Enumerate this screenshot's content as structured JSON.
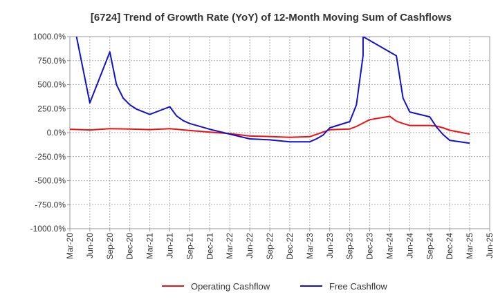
{
  "chart_data": {
    "type": "line",
    "title": "[6724]  Trend of Growth Rate (YoY) of 12-Month Moving Sum of Cashflows",
    "xlabel": "",
    "ylabel": "",
    "x_tick_labels": [
      "Mar-20",
      "Jun-20",
      "Sep-20",
      "Dec-20",
      "Mar-21",
      "Jun-21",
      "Sep-21",
      "Dec-21",
      "Mar-22",
      "Jun-22",
      "Sep-22",
      "Dec-22",
      "Mar-23",
      "Jun-23",
      "Sep-23",
      "Dec-23",
      "Mar-24",
      "Jun-24",
      "Sep-24",
      "Dec-24",
      "Mar-25",
      "Jun-25"
    ],
    "y_ticks": [
      1000,
      750,
      500,
      250,
      0,
      -250,
      -500,
      -750,
      -1000
    ],
    "y_tick_labels": [
      "1000.0%",
      "750.0%",
      "500.0%",
      "250.0%",
      "0.0%",
      "-250.0%",
      "-500.0%",
      "-750.0%",
      "-1000.0%"
    ],
    "ylim": [
      -1000,
      1000
    ],
    "grid": true,
    "legend_position": "bottom",
    "series": [
      {
        "name": "Operating Cashflow",
        "color": "#ee1111",
        "points": [
          [
            "Mar-20",
            35
          ],
          [
            "Jun-20",
            28
          ],
          [
            "Sep-20",
            42
          ],
          [
            "Dec-20",
            38
          ],
          [
            "Mar-21",
            32
          ],
          [
            "Jun-21",
            42
          ],
          [
            "Sep-21",
            22
          ],
          [
            "Dec-21",
            5
          ],
          [
            "Mar-22",
            -10
          ],
          [
            "Jun-22",
            -35
          ],
          [
            "Sep-22",
            -40
          ],
          [
            "Dec-22",
            -48
          ],
          [
            "Mar-23",
            -42
          ],
          [
            "Jun-23",
            30
          ],
          [
            "Sep-23",
            38
          ],
          [
            "Oct-23",
            65
          ],
          [
            "Nov-23",
            100
          ],
          [
            "Dec-23",
            135
          ],
          [
            "Mar-24",
            170
          ],
          [
            "Apr-24",
            120
          ],
          [
            "May-24",
            95
          ],
          [
            "Jun-24",
            75
          ],
          [
            "Sep-24",
            75
          ],
          [
            "Oct-24",
            68
          ],
          [
            "Nov-24",
            50
          ],
          [
            "Dec-24",
            25
          ],
          [
            "Mar-25",
            -15
          ]
        ]
      },
      {
        "name": "Free Cashflow",
        "color": "#1111cc",
        "points": [
          [
            "Apr-20",
            1000
          ],
          [
            "Jun-20",
            310
          ],
          [
            "Sep-20",
            840
          ],
          [
            "Oct-20",
            500
          ],
          [
            "Nov-20",
            360
          ],
          [
            "Dec-20",
            290
          ],
          [
            "Jan-21",
            245
          ],
          [
            "Mar-21",
            190
          ],
          [
            "Jun-21",
            270
          ],
          [
            "Jul-21",
            175
          ],
          [
            "Aug-21",
            125
          ],
          [
            "Sep-21",
            95
          ],
          [
            "Dec-21",
            35
          ],
          [
            "Mar-22",
            -15
          ],
          [
            "Jun-22",
            -65
          ],
          [
            "Sep-22",
            -75
          ],
          [
            "Dec-22",
            -95
          ],
          [
            "Mar-23",
            -95
          ],
          [
            "Apr-23",
            -65
          ],
          [
            "May-23",
            -25
          ],
          [
            "Jun-23",
            50
          ],
          [
            "Sep-23",
            115
          ],
          [
            "Oct-23",
            290
          ],
          [
            "Nov-23",
            800
          ],
          [
            "Nov-23",
            1000
          ],
          [
            "Apr-24",
            800
          ],
          [
            "May-24",
            360
          ],
          [
            "Jun-24",
            215
          ],
          [
            "Sep-24",
            165
          ],
          [
            "Oct-24",
            60
          ],
          [
            "Nov-24",
            -20
          ],
          [
            "Dec-24",
            -80
          ],
          [
            "Mar-25",
            -110
          ]
        ]
      }
    ]
  }
}
